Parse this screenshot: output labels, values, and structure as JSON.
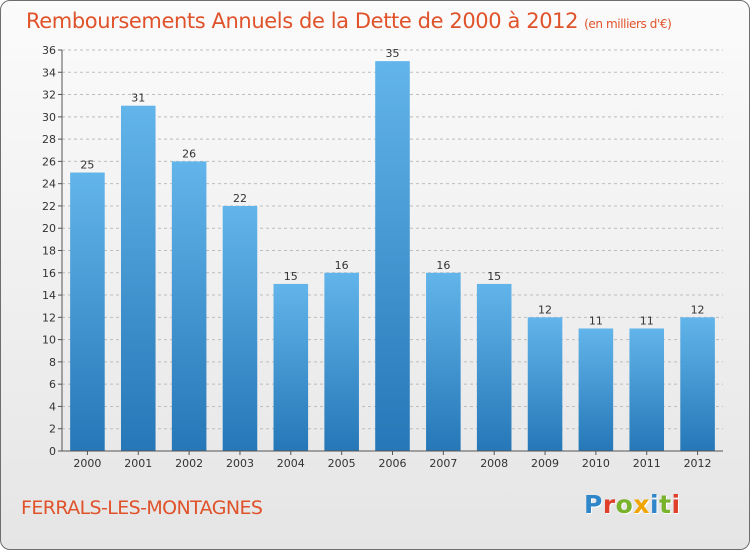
{
  "header": {
    "title": "Remboursements Annuels de la Dette de 2000 à 2012",
    "unit": "(en milliers d'€)"
  },
  "footer": {
    "town": "FERRALS-LES-MONTAGNES",
    "brand_letters": [
      "P",
      "r",
      "o",
      "x",
      "i",
      "t",
      "i"
    ],
    "brand_colors": [
      "#2f86c9",
      "#e0402a",
      "#79b32b",
      "#f0a500",
      "#2f86c9",
      "#79b32b",
      "#e0402a"
    ]
  },
  "colors": {
    "bar_top": "#62b5ea",
    "bar_bottom": "#2577b7",
    "grid": "#bdbdbd",
    "axis": "#555555"
  },
  "chart_data": {
    "type": "bar",
    "title": "Remboursements Annuels de la Dette de 2000 à 2012",
    "unit": "(en milliers d'€)",
    "xlabel": "",
    "ylabel": "",
    "categories": [
      "2000",
      "2001",
      "2002",
      "2003",
      "2004",
      "2005",
      "2006",
      "2007",
      "2008",
      "2009",
      "2010",
      "2011",
      "2012"
    ],
    "values": [
      25,
      31,
      26,
      22,
      15,
      16,
      35,
      16,
      15,
      12,
      11,
      11,
      12
    ],
    "ylim": [
      0,
      36
    ],
    "yticks": [
      0,
      2,
      4,
      6,
      8,
      10,
      12,
      14,
      16,
      18,
      20,
      22,
      24,
      26,
      28,
      30,
      32,
      34,
      36
    ],
    "grid": true,
    "legend": "none"
  }
}
